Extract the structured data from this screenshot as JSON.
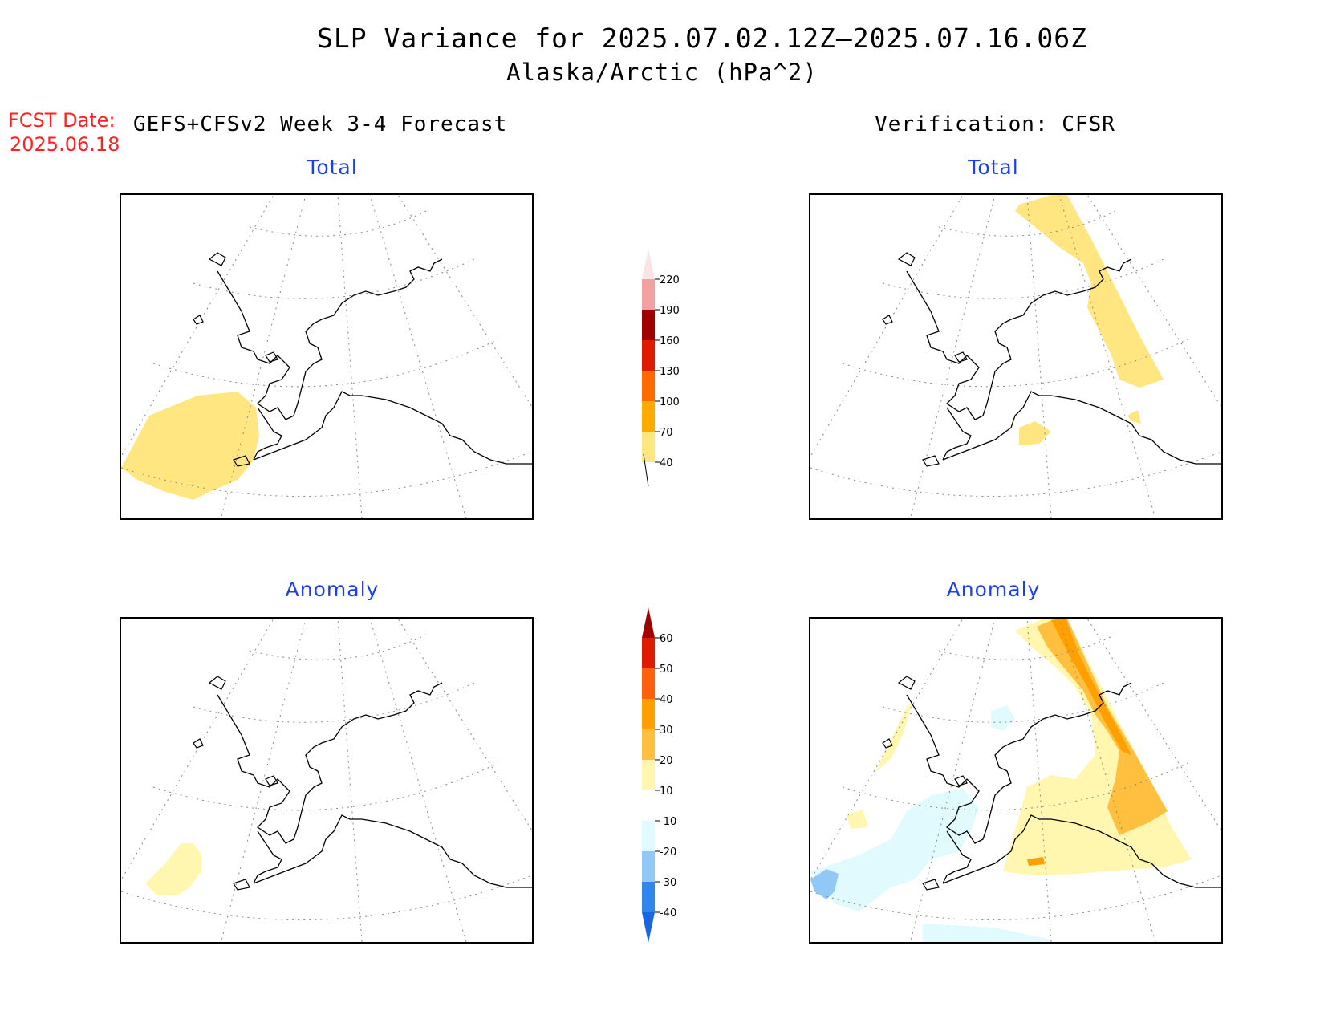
{
  "title": {
    "line1": "SLP Variance for 2025.07.02.12Z—2025.07.16.06Z",
    "line2": "Alaska/Arctic (hPa^2)"
  },
  "forecast": {
    "label": "FCST Date:",
    "date": "2025.06.18",
    "left_heading": "GEFS+CFSv2 Week 3-4 Forecast",
    "right_heading": "Verification: CFSR"
  },
  "panels": {
    "top_left_label": "Total",
    "top_right_label": "Total",
    "bottom_left_label": "Anomaly",
    "bottom_right_label": "Anomaly"
  },
  "colorbar_total": {
    "labels": [
      "40",
      "70",
      "100",
      "130",
      "160",
      "190",
      "220"
    ],
    "colors": [
      "#ffe680",
      "#ffaa00",
      "#ff6a00",
      "#e01a00",
      "#a00000",
      "#f2a0a0",
      "#fde4e4"
    ]
  },
  "colorbar_anomaly": {
    "labels": [
      "-40",
      "-30",
      "-20",
      "-10",
      "10",
      "20",
      "30",
      "40",
      "50",
      "60"
    ],
    "colors": [
      "#1a66e0",
      "#2e86ee",
      "#92c8f6",
      "#e0fafe",
      "#ffffff",
      "#fff6b0",
      "#ffc040",
      "#ffa000",
      "#ff6010",
      "#e01a00",
      "#a00000"
    ]
  },
  "colors": {
    "title_text": "#000000",
    "fcst_text": "#ff2020",
    "panel_label": "#1a3cff"
  }
}
